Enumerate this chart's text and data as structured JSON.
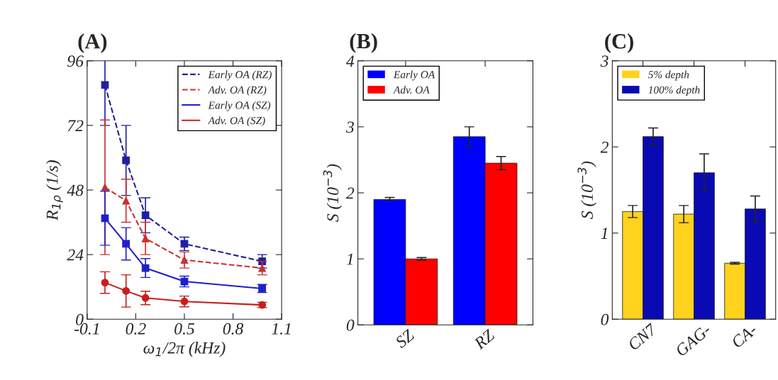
{
  "chart_data": [
    {
      "type": "line",
      "title": "(A)",
      "xlabel": "ω$_{1}$/2π (kHz)",
      "ylabel": "R$_{1ρ}$ (1/s)",
      "xlim": [
        -0.1,
        1.1
      ],
      "xticks": [
        -0.1,
        0.2,
        0.5,
        0.8,
        1.1
      ],
      "ylim": [
        0,
        96
      ],
      "yticks": [
        0,
        24,
        48,
        72,
        96
      ],
      "legend": "top right",
      "grid": false,
      "series": [
        {
          "name": "Early OA (RZ)",
          "color": "#1f1fa0",
          "line_style": "dashed",
          "marker": "square",
          "x": [
            0.01,
            0.14,
            0.26,
            0.5,
            0.98
          ],
          "values": [
            87,
            59,
            38.6,
            28,
            21.5
          ],
          "errors": [
            15,
            13,
            6.5,
            2.5,
            2.5
          ]
        },
        {
          "name": "Adv. OA (RZ)",
          "color": "#c83232",
          "line_style": "dashed",
          "marker": "triangle",
          "x": [
            0.01,
            0.14,
            0.26,
            0.5,
            0.98
          ],
          "values": [
            49,
            44,
            30,
            22,
            19
          ],
          "errors": [
            25,
            8,
            6,
            3,
            2.5
          ]
        },
        {
          "name": "Early OA (SZ)",
          "color": "#1f1fc8",
          "line_style": "solid",
          "marker": "square",
          "x": [
            0.01,
            0.14,
            0.26,
            0.5,
            0.98
          ],
          "values": [
            37.5,
            28,
            19,
            14,
            11.4
          ],
          "errors": [
            10,
            6,
            3.5,
            2,
            1.5
          ]
        },
        {
          "name": "Adv. OA (SZ)",
          "color": "#c81e1e",
          "line_style": "solid",
          "marker": "circle",
          "x": [
            0.01,
            0.14,
            0.26,
            0.5,
            0.98
          ],
          "values": [
            13.6,
            10.5,
            7.9,
            6.6,
            5.3
          ],
          "errors": [
            4,
            6,
            2.5,
            2,
            1
          ]
        }
      ]
    },
    {
      "type": "bar",
      "title": "(B)",
      "ylabel": "S (10$^{−3}$)",
      "categories": [
        "SZ",
        "RZ"
      ],
      "ylim": [
        0,
        4
      ],
      "yticks": [
        0,
        1,
        2,
        3,
        4
      ],
      "legend": "top left",
      "grid": false,
      "series": [
        {
          "name": "Early OA",
          "color": "#0000ff",
          "values": [
            1.9,
            2.85
          ],
          "errors": [
            0.03,
            0.15
          ]
        },
        {
          "name": "Adv. OA",
          "color": "#ff0000",
          "values": [
            1.0,
            2.45
          ],
          "errors": [
            0.02,
            0.1
          ]
        }
      ]
    },
    {
      "type": "bar",
      "title": "(C)",
      "ylabel": "S (10$^{−3}$)",
      "categories": [
        "CN7",
        "GAG-",
        "CA-"
      ],
      "ylim": [
        0,
        3
      ],
      "yticks": [
        0,
        1,
        2,
        3
      ],
      "legend": "top left",
      "grid": false,
      "series": [
        {
          "name": "5% depth",
          "color": "#ffd21e",
          "values": [
            1.25,
            1.22,
            0.65
          ],
          "errors": [
            0.07,
            0.1,
            0.01
          ]
        },
        {
          "name": "100% depth",
          "color": "#0a0ab4",
          "values": [
            2.12,
            1.7,
            1.28
          ],
          "errors": [
            0.1,
            0.22,
            0.15
          ]
        }
      ]
    }
  ]
}
